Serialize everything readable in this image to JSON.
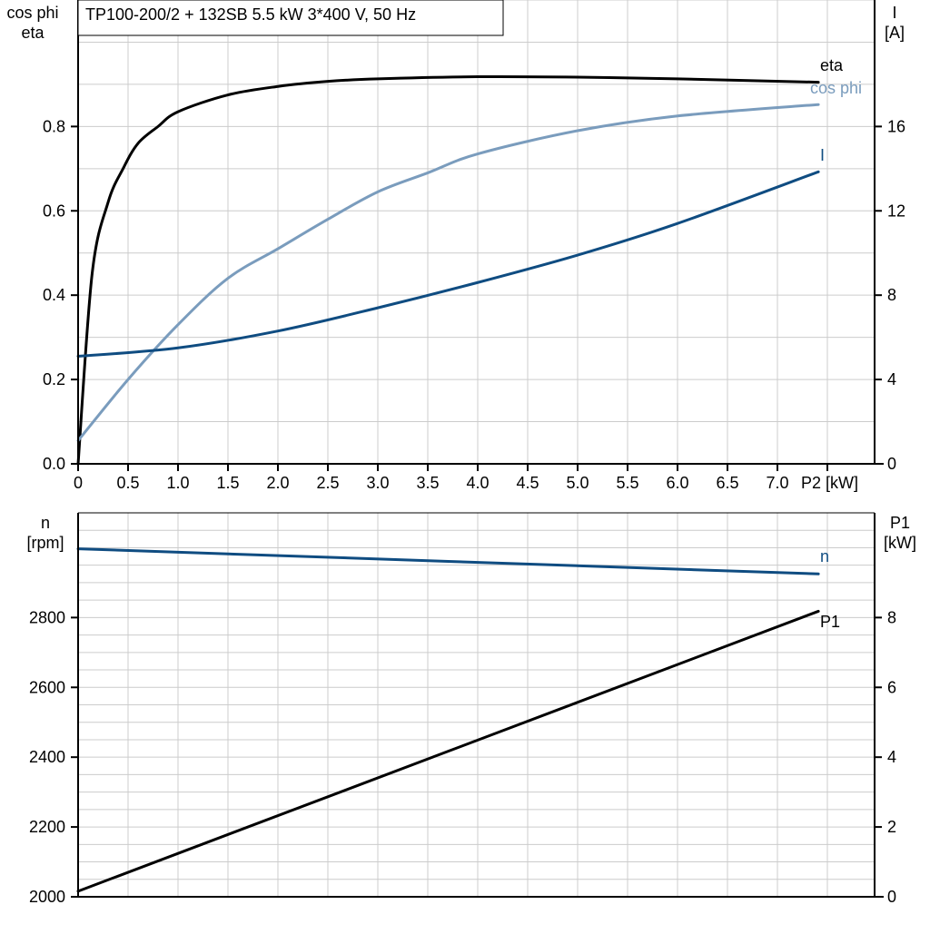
{
  "title": "TP100-200/2 + 132SB   5.5 kW   3*400 V, 50 Hz",
  "colors": {
    "eta": "#000000",
    "cos_phi": "#7a9cbd",
    "I": "#0f4c81",
    "n": "#0f4c81",
    "P1": "#000000",
    "grid": "#cccccc"
  },
  "chart_data": [
    {
      "type": "line",
      "title": "TP100-200/2 + 132SB   5.5 kW   3*400 V, 50 Hz",
      "xlabel": "P2 [kW]",
      "ylabel_left": [
        "cos phi",
        "eta"
      ],
      "ylabel_right": [
        "I",
        "[A]"
      ],
      "xlim": [
        0,
        8
      ],
      "ylim_left": [
        0,
        1.1
      ],
      "ylim_right": [
        0,
        22
      ],
      "x_ticks": [
        "0",
        "0.5",
        "1.0",
        "1.5",
        "2.0",
        "2.5",
        "3.0",
        "3.5",
        "4.0",
        "4.5",
        "5.0",
        "5.5",
        "6.0",
        "6.5",
        "7.0"
      ],
      "y_ticks_left": [
        "0.0",
        "0.2",
        "0.4",
        "0.6",
        "0.8"
      ],
      "y_ticks_right": [
        "0",
        "4",
        "8",
        "12",
        "16"
      ],
      "grid": true,
      "series": [
        {
          "name": "eta",
          "axis": "left",
          "x": [
            0,
            0.14,
            0.3,
            0.45,
            0.6,
            0.8,
            1.0,
            1.5,
            2.0,
            2.5,
            3.0,
            4.0,
            5.0,
            6.0,
            7.41
          ],
          "y": [
            0.0,
            0.45,
            0.62,
            0.7,
            0.76,
            0.8,
            0.835,
            0.875,
            0.895,
            0.907,
            0.913,
            0.918,
            0.917,
            0.913,
            0.905
          ]
        },
        {
          "name": "cos phi",
          "axis": "left",
          "x": [
            0,
            0.5,
            1.0,
            1.5,
            2.0,
            2.5,
            3.0,
            3.5,
            4.0,
            5.0,
            6.0,
            7.41
          ],
          "y": [
            0.055,
            0.2,
            0.33,
            0.44,
            0.51,
            0.58,
            0.645,
            0.69,
            0.735,
            0.79,
            0.825,
            0.852
          ]
        },
        {
          "name": "I",
          "axis": "right",
          "x": [
            0,
            1.0,
            2.0,
            3.0,
            4.0,
            5.0,
            6.0,
            7.41
          ],
          "y": [
            5.1,
            5.5,
            6.3,
            7.4,
            8.6,
            9.9,
            11.4,
            13.85
          ]
        }
      ]
    },
    {
      "type": "line",
      "xlim": [
        0,
        8
      ],
      "ylabel_left": [
        "n",
        "[rpm]"
      ],
      "ylabel_right": [
        "P1",
        "[kW]"
      ],
      "ylim_left": [
        2000,
        3100
      ],
      "ylim_right": [
        0,
        11
      ],
      "y_ticks_left": [
        "2000",
        "2200",
        "2400",
        "2600",
        "2800"
      ],
      "y_ticks_right": [
        "0",
        "2",
        "4",
        "6",
        "8"
      ],
      "grid": true,
      "series": [
        {
          "name": "n",
          "axis": "left",
          "x": [
            0,
            7.41
          ],
          "y": [
            2997,
            2925
          ]
        },
        {
          "name": "P1",
          "axis": "right",
          "x": [
            0,
            7.41
          ],
          "y": [
            0.16,
            8.18
          ]
        }
      ]
    }
  ]
}
